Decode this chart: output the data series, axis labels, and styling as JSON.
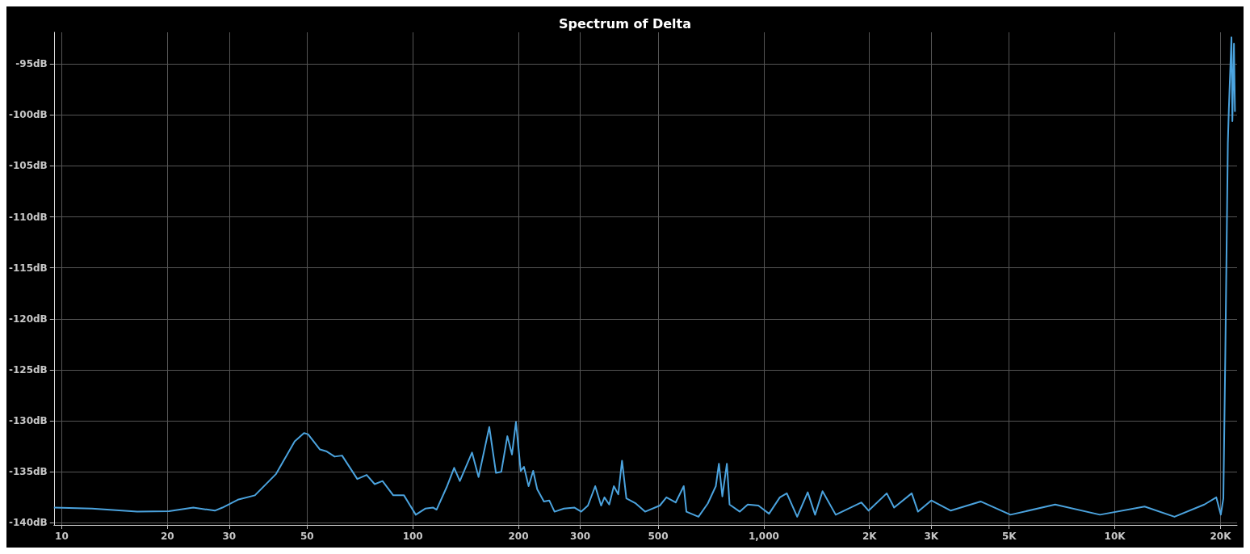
{
  "chart_data": {
    "type": "line",
    "title": "Spectrum of Delta",
    "log": "x",
    "grid": true,
    "marker": "none",
    "line_style": "solid",
    "xlim": [
      9.5,
      22300
    ],
    "ylim": [
      -140.2,
      -91.9
    ],
    "xticks": [
      10,
      20,
      30,
      50,
      100,
      200,
      300,
      500,
      {
        "value": 1000,
        "label": "1,000"
      },
      {
        "value": 2000,
        "label": "2K"
      },
      {
        "value": 3000,
        "label": "3K"
      },
      {
        "value": 5000,
        "label": "5K"
      },
      {
        "value": 10000,
        "label": "10K"
      },
      {
        "value": 20000,
        "label": "20K"
      }
    ],
    "yticks": [
      {
        "value": -140,
        "label": "-140dB"
      },
      {
        "value": -135,
        "label": "-135dB"
      },
      {
        "value": -130,
        "label": "-130dB"
      },
      {
        "value": -125,
        "label": "-125dB"
      },
      {
        "value": -120,
        "label": "-120dB"
      },
      {
        "value": -115,
        "label": "-115dB"
      },
      {
        "value": -110,
        "label": "-110dB"
      },
      {
        "value": -105,
        "label": "-105dB"
      },
      {
        "value": -100,
        "label": "-100dB"
      },
      {
        "value": -95,
        "label": "-95dB"
      }
    ],
    "series": [
      {
        "color": "#4ba3de",
        "x": [
          9.5,
          12.2,
          16.4,
          20.2,
          23.7,
          27.3,
          28.7,
          31.9,
          35.5,
          40.8,
          46.1,
          49,
          50.3,
          54.4,
          56.9,
          59.9,
          62.9,
          69.5,
          73.9,
          77.9,
          82,
          88,
          94.4,
          102,
          108.5,
          114.4,
          116.9,
          124.9,
          131.2,
          136.2,
          147.5,
          154,
          165.2,
          172.6,
          178.7,
          186,
          191.7,
          196.8,
          203,
          207.4,
          213.8,
          220.3,
          226.2,
          236.4,
          244.8,
          253.5,
          269.5,
          289,
          302,
          315.5,
          331,
          344,
          351.6,
          362.8,
          374,
          385,
          394.6,
          406,
          432,
          459,
          505.6,
          528,
          561,
          591.5,
          602,
          651.6,
          692.5,
          730,
          745,
          762,
          785,
          799,
          854.5,
          900,
          965,
          1035,
          1111,
          1163,
          1245,
          1334,
          1400,
          1470,
          1603,
          1897,
          1989,
          2240,
          2351,
          2639,
          2750,
          3000,
          3410,
          4147,
          5043,
          6761,
          9073,
          12160,
          14790,
          17990,
          19460,
          20040,
          20380,
          20640,
          20830,
          20990,
          21130,
          21490,
          21620,
          21850,
          21990
        ],
        "values": [
          -138.5,
          -138.6,
          -138.9,
          -138.85,
          -138.5,
          -138.8,
          -138.5,
          -137.7,
          -137.3,
          -135.2,
          -132,
          -131.2,
          -131.3,
          -132.8,
          -133,
          -133.5,
          -133.4,
          -135.7,
          -135.3,
          -136.2,
          -135.9,
          -137.3,
          -137.3,
          -139.2,
          -138.6,
          -138.5,
          -138.7,
          -136.5,
          -134.6,
          -135.9,
          -133.1,
          -135.5,
          -130.6,
          -135.1,
          -135,
          -131.5,
          -133.3,
          -130.1,
          -134.9,
          -134.5,
          -136.4,
          -134.9,
          -136.7,
          -137.9,
          -137.8,
          -138.9,
          -138.6,
          -138.5,
          -138.9,
          -138.3,
          -136.4,
          -138.3,
          -137.5,
          -138.2,
          -136.4,
          -137.2,
          -133.9,
          -137.6,
          -138.1,
          -138.9,
          -138.3,
          -137.5,
          -138,
          -136.4,
          -138.9,
          -139.4,
          -138.1,
          -136.4,
          -134.2,
          -137.4,
          -134.2,
          -138.2,
          -138.9,
          -138.2,
          -138.3,
          -139.1,
          -137.5,
          -137.1,
          -139.4,
          -137,
          -139.2,
          -136.9,
          -139.2,
          -138,
          -138.8,
          -137.1,
          -138.5,
          -137.1,
          -138.9,
          -137.8,
          -138.8,
          -137.9,
          -139.2,
          -138.2,
          -139.2,
          -138.4,
          -139.4,
          -138.2,
          -137.5,
          -139.2,
          -137.6,
          -123.7,
          -112.3,
          -102.8,
          -99.4,
          -92.4,
          -100.6,
          -93,
          -99.7
        ]
      }
    ]
  }
}
